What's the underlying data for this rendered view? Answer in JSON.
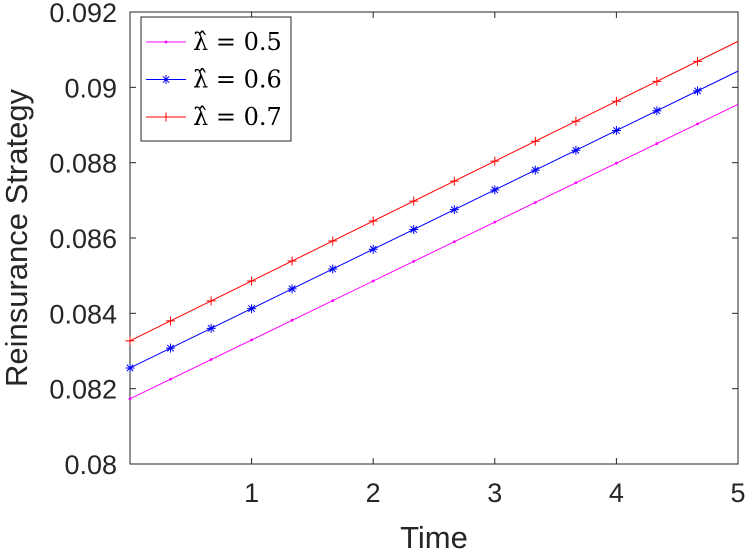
{
  "chart_data": {
    "type": "line",
    "title": "",
    "xlabel": "Time",
    "ylabel": "Reinsurance Strategy",
    "xlim": [
      0,
      5
    ],
    "ylim": [
      0.08,
      0.092
    ],
    "xticks": [
      1,
      2,
      3,
      4,
      5
    ],
    "xtick_labels": [
      "1",
      "2",
      "3",
      "4",
      "5"
    ],
    "yticks": [
      0.08,
      0.082,
      0.084,
      0.086,
      0.088,
      0.09,
      0.092
    ],
    "ytick_labels": [
      "0.08",
      "0.082",
      "0.084",
      "0.086",
      "0.088",
      "0.09",
      "0.092"
    ],
    "grid": false,
    "legend_position": "top-left",
    "marker_x": [
      0,
      0.333,
      0.667,
      1,
      1.333,
      1.667,
      2,
      2.333,
      2.667,
      3,
      3.333,
      3.667,
      4,
      4.333,
      4.667
    ],
    "series": [
      {
        "name": "λ̂ = 0.5",
        "color": "#ff00ff",
        "marker": "dot",
        "x": [
          0,
          5
        ],
        "values": [
          0.08173,
          0.08955
        ]
      },
      {
        "name": "λ̂ = 0.6",
        "color": "#0000ff",
        "marker": "asterisk",
        "x": [
          0,
          5
        ],
        "values": [
          0.08255,
          0.09043
        ]
      },
      {
        "name": "λ̂ = 0.7",
        "color": "#ff0000",
        "marker": "plus",
        "x": [
          0,
          5
        ],
        "values": [
          0.08327,
          0.09122
        ]
      }
    ]
  }
}
